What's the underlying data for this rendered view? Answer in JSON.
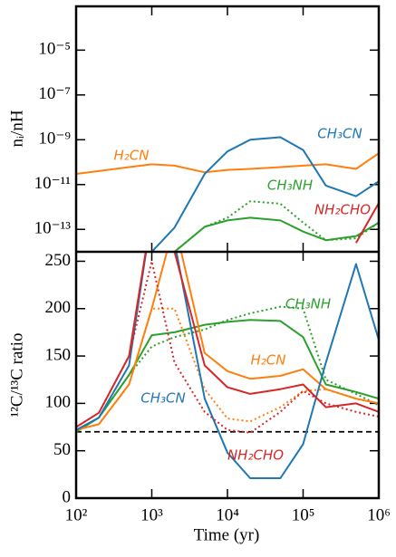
{
  "chart_data": [
    {
      "type": "line",
      "ylabel": "nᵢ/nH",
      "xlog": true,
      "ylog": true,
      "xlim": [
        100,
        1000000
      ],
      "ylim": [
        1e-14,
        0.0009
      ],
      "yticks": [
        {
          "value": 1e-13,
          "label": "10⁻¹³"
        },
        {
          "value": 1e-11,
          "label": "10⁻¹¹"
        },
        {
          "value": 1e-09,
          "label": "10⁻⁹"
        },
        {
          "value": 1e-07,
          "label": "10⁻⁷"
        },
        {
          "value": 1e-05,
          "label": "10⁻⁵"
        }
      ],
      "x": [
        100,
        200,
        500,
        1000,
        2000,
        5000,
        10000,
        20000,
        50000,
        100000,
        200000,
        500000,
        1000000
      ],
      "series": [
        {
          "name": "H₂CN",
          "color": "#ff7f0e",
          "style": "solid",
          "values": [
            3e-11,
            4e-11,
            6e-11,
            8e-11,
            7e-11,
            3.5e-11,
            4.5e-11,
            5e-11,
            6e-11,
            7e-11,
            8e-11,
            5e-11,
            2.5e-10
          ]
        },
        {
          "name": "CH₃CN",
          "color": "#1f77b4",
          "style": "solid",
          "values": [
            null,
            null,
            null,
            1e-14,
            1.2e-13,
            3e-11,
            3e-10,
            1e-09,
            1.3e-09,
            3.5e-10,
            9e-12,
            3e-12,
            1.4e-11
          ]
        },
        {
          "name": "CH₃NH",
          "color": "#2ca02c",
          "style": "solid",
          "values": [
            null,
            null,
            null,
            null,
            1e-14,
            1.3e-13,
            2.5e-13,
            3.3e-13,
            2.5e-13,
            8e-14,
            3.3e-14,
            5e-14,
            2e-13
          ]
        },
        {
          "name": "CH₃NH",
          "color": "#2ca02c",
          "style": "dotted",
          "values": [
            null,
            null,
            null,
            null,
            1e-14,
            1.3e-13,
            3.3e-13,
            1.8e-12,
            1.4e-12,
            2e-13,
            3.3e-14,
            4e-14,
            2e-13
          ]
        },
        {
          "name": "NH₂CHO",
          "color": "#d62728",
          "style": "solid",
          "values": [
            null,
            null,
            null,
            null,
            null,
            null,
            null,
            null,
            null,
            null,
            null,
            2.5e-14,
            1.5e-12
          ]
        }
      ]
    },
    {
      "type": "line",
      "xlabel": "Time (yr)",
      "ylabel": "¹²C/¹³C ratio",
      "xlog": true,
      "xlim": [
        100,
        1000000
      ],
      "ylim": [
        0,
        260
      ],
      "xticks": [
        {
          "value": 100,
          "label": "10²"
        },
        {
          "value": 1000,
          "label": "10³"
        },
        {
          "value": 10000,
          "label": "10⁴"
        },
        {
          "value": 100000,
          "label": "10⁵"
        },
        {
          "value": 1000000,
          "label": "10⁶"
        }
      ],
      "yticks": [
        0,
        50,
        100,
        150,
        200,
        250
      ],
      "reference_line": 70,
      "x": [
        100,
        200,
        500,
        1000,
        2000,
        5000,
        10000,
        20000,
        50000,
        100000,
        200000,
        500000,
        1000000
      ],
      "series": [
        {
          "name": "CH₃NH",
          "color": "#2ca02c",
          "style": "solid",
          "values": [
            70,
            85,
            130,
            172,
            175,
            183,
            186,
            188,
            187,
            170,
            120,
            112,
            105
          ]
        },
        {
          "name": "CH₃NH",
          "color": "#2ca02c",
          "style": "dotted",
          "values": [
            70,
            85,
            130,
            160,
            170,
            178,
            188,
            195,
            202,
            200,
            125,
            110,
            98
          ]
        },
        {
          "name": "H₂CN",
          "color": "#ff7f0e",
          "style": "solid",
          "values": [
            72,
            78,
            120,
            200,
            290,
            153,
            134,
            126,
            129,
            136,
            115,
            105,
            100
          ]
        },
        {
          "name": "H₂CN",
          "color": "#ff7f0e",
          "style": "dotted",
          "values": [
            72,
            78,
            120,
            200,
            200,
            115,
            84,
            81,
            96,
            113,
            115,
            105,
            100
          ]
        },
        {
          "name": "CH₃CN",
          "color": "#1f77b4",
          "style": "solid",
          "values": [
            72,
            85,
            140,
            300,
            270,
            105,
            48,
            21,
            21,
            57,
            143,
            247,
            167
          ]
        },
        {
          "name": "NH₂CHO",
          "color": "#d62728",
          "style": "solid",
          "values": [
            75,
            90,
            150,
            300,
            260,
            140,
            117,
            110,
            115,
            120,
            96,
            100,
            91
          ]
        },
        {
          "name": "NH₂CHO",
          "color": "#d62728",
          "style": "dotted",
          "values": [
            75,
            90,
            150,
            250,
            143,
            91,
            72,
            69,
            91,
            113,
            100,
            91,
            86
          ]
        }
      ]
    }
  ]
}
